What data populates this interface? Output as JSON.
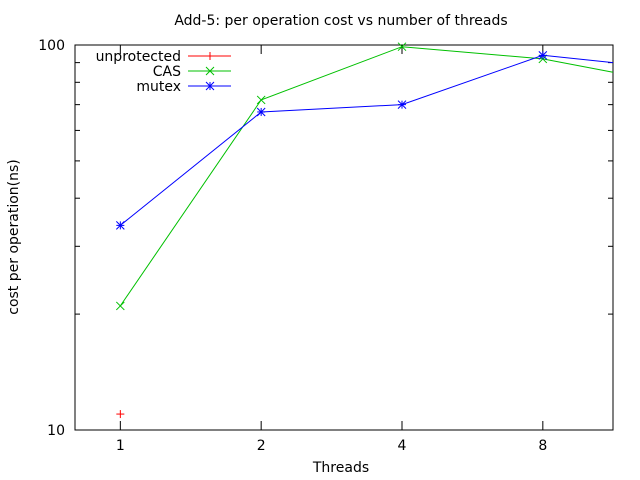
{
  "chart_data": {
    "type": "line",
    "title": "Add-5: per operation cost vs number of threads",
    "xlabel": "Threads",
    "ylabel": "cost per operation(ns)",
    "x_scale": "log2",
    "y_scale": "log10",
    "xlim": [
      0.8,
      11.3
    ],
    "ylim": [
      10,
      100
    ],
    "x_ticks": [
      1,
      2,
      4,
      8
    ],
    "x_tick_labels": [
      "1",
      "2",
      "4",
      "8"
    ],
    "y_tick_labels": [
      "10",
      "100"
    ],
    "grid": false,
    "legend_position": "top-left",
    "series": [
      {
        "name": "unprotected",
        "color": "#ff0000",
        "marker": "plus",
        "points": [
          [
            1,
            11
          ]
        ]
      },
      {
        "name": "CAS",
        "color": "#00c000",
        "marker": "x",
        "points": [
          [
            1,
            21
          ],
          [
            2,
            72
          ],
          [
            4,
            99
          ],
          [
            8,
            92
          ],
          [
            11.3,
            85
          ]
        ]
      },
      {
        "name": "mutex",
        "color": "#0000ff",
        "marker": "star",
        "points": [
          [
            1,
            34
          ],
          [
            2,
            67
          ],
          [
            4,
            70
          ],
          [
            8,
            94
          ],
          [
            11.3,
            90
          ]
        ]
      }
    ]
  }
}
